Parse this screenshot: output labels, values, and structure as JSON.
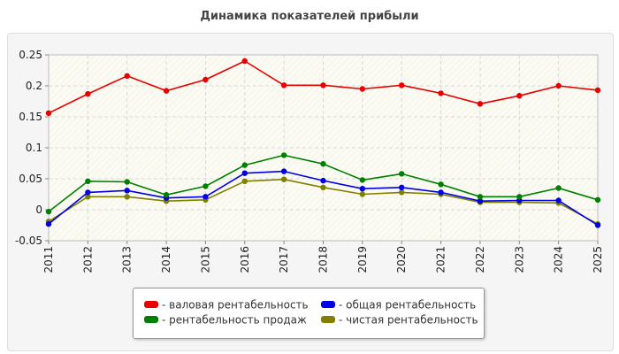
{
  "title": "Динамика показателей прибыли",
  "chart_data": {
    "type": "line",
    "title": "Динамика показателей прибыли",
    "categories": [
      "2011",
      "2012",
      "2013",
      "2014",
      "2015",
      "2016",
      "2017",
      "2018",
      "2019",
      "2020",
      "2021",
      "2022",
      "2023",
      "2024",
      "2025"
    ],
    "ylim": [
      -0.05,
      0.25
    ],
    "yticks": [
      -0.05,
      0,
      0.05,
      0.1,
      0.15,
      0.2,
      0.25
    ],
    "ytick_labels": [
      "-0.05",
      "0",
      "0.05",
      "0.1",
      "0.15",
      "0.2",
      "0.25"
    ],
    "grid": true,
    "legend_position": "bottom",
    "series": [
      {
        "name": "- валовая рентабельность",
        "color": "#e80000",
        "values": [
          0.156,
          0.187,
          0.216,
          0.192,
          0.21,
          0.24,
          0.201,
          0.201,
          0.195,
          0.201,
          0.188,
          0.171,
          0.184,
          0.2,
          0.193
        ]
      },
      {
        "name": "- общая рентабельность",
        "color": "#0000e8",
        "values": [
          -0.023,
          0.028,
          0.031,
          0.019,
          0.021,
          0.059,
          0.062,
          0.047,
          0.034,
          0.036,
          0.028,
          0.014,
          0.015,
          0.015,
          -0.025
        ]
      },
      {
        "name": "- рентабельность продаж",
        "color": "#008000",
        "values": [
          -0.003,
          0.046,
          0.045,
          0.024,
          0.038,
          0.072,
          0.088,
          0.074,
          0.048,
          0.058,
          0.041,
          0.021,
          0.021,
          0.035,
          0.016
        ]
      },
      {
        "name": "- чистая рентабельность",
        "color": "#808000",
        "values": [
          -0.019,
          0.021,
          0.021,
          0.014,
          0.016,
          0.046,
          0.049,
          0.036,
          0.025,
          0.028,
          0.025,
          0.012,
          0.012,
          0.011,
          -0.023
        ]
      }
    ]
  }
}
